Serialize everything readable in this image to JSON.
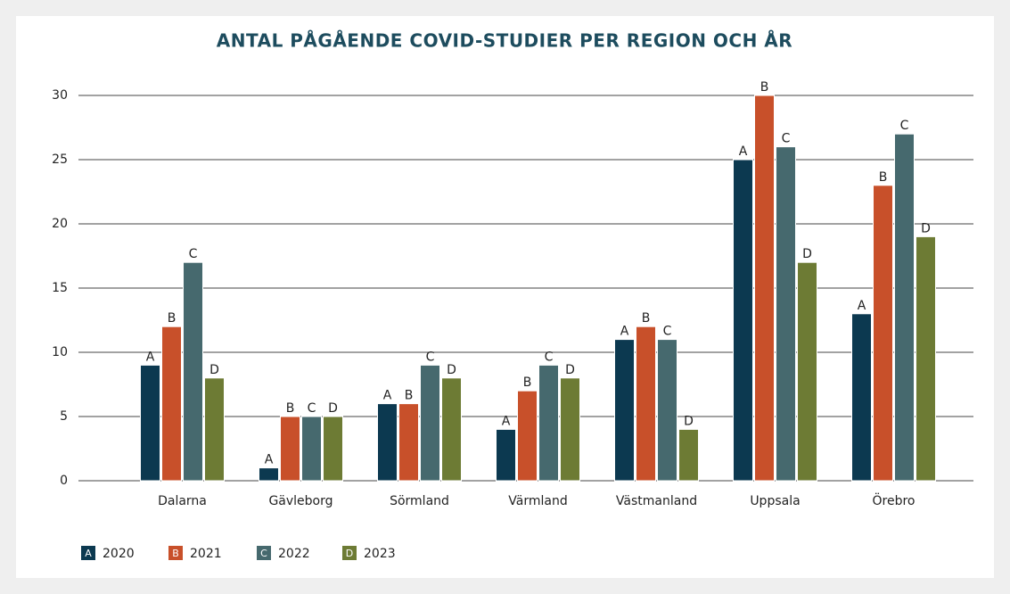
{
  "chart_data": {
    "type": "bar",
    "title": "ANTAL PÅGÅENDE COVID-STUDIER PER REGION OCH ÅR",
    "categories": [
      "Dalarna",
      "Gävleborg",
      "Sörmland",
      "Värmland",
      "Västmanland",
      "Uppsala",
      "Örebro"
    ],
    "series": [
      {
        "name": "2020",
        "letter": "A",
        "color": "#0c3950",
        "values": [
          9,
          1,
          6,
          4,
          11,
          25,
          13
        ]
      },
      {
        "name": "2021",
        "letter": "B",
        "color": "#c8502a",
        "values": [
          12,
          5,
          6,
          7,
          12,
          30,
          23
        ]
      },
      {
        "name": "2022",
        "letter": "C",
        "color": "#46696e",
        "values": [
          17,
          5,
          9,
          9,
          11,
          26,
          27
        ]
      },
      {
        "name": "2023",
        "letter": "D",
        "color": "#6d7b34",
        "values": [
          8,
          5,
          8,
          8,
          4,
          17,
          19
        ]
      }
    ],
    "ylim": [
      0,
      30
    ],
    "yticks": [
      0,
      5,
      10,
      15,
      20,
      25,
      30
    ],
    "grid": true
  }
}
